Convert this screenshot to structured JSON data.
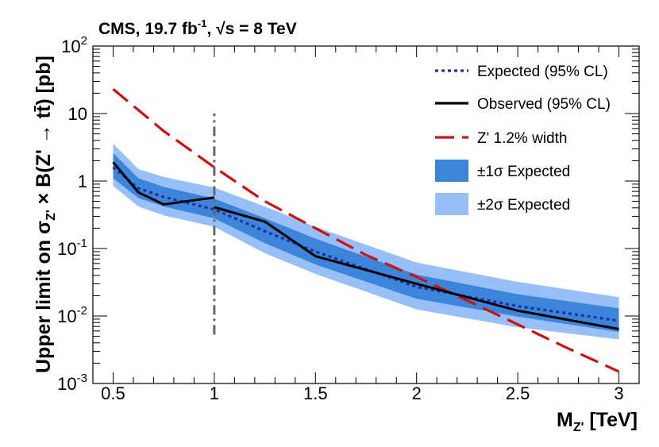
{
  "header": {
    "experiment": "CMS",
    "lumi": "19.7 fb",
    "lumi_exp": "-1",
    "energy": "s = 8 TeV"
  },
  "chart_data": {
    "type": "line",
    "xlabel": "M",
    "xlabel_sub": "Z'",
    "xlabel_unit": "[TeV]",
    "ylabel": "Upper limit on σ",
    "ylabel_sub": "Z'",
    "ylabel_rest": "× B(Z' → tt̄) [pb]",
    "xlim": [
      0.4,
      3.1
    ],
    "ylim": [
      0.001,
      100
    ],
    "yscale": "log",
    "grid": false,
    "legend_position": "top-right",
    "x_ticks": [
      "0.5",
      "1",
      "1.5",
      "2",
      "2.5",
      "3"
    ],
    "x_tick_values": [
      0.5,
      1,
      1.5,
      2,
      2.5,
      3
    ],
    "y_ticks": [
      {
        "base": "10",
        "exp": "-3"
      },
      {
        "base": "10",
        "exp": "-2"
      },
      {
        "base": "10",
        "exp": "-1"
      },
      {
        "base": "1",
        "exp": ""
      },
      {
        "base": "10",
        "exp": ""
      },
      {
        "base": "10",
        "exp": "2"
      }
    ],
    "y_tick_values": [
      0.001,
      0.01,
      0.1,
      1,
      10,
      100
    ],
    "legend": [
      {
        "label": "Expected (95% CL)",
        "style": "dotted",
        "color": "#1f2fa0"
      },
      {
        "label": "Observed (95% CL)",
        "style": "solid",
        "color": "#000000"
      },
      {
        "label": "Z' 1.2% width",
        "style": "dashed",
        "color": "#cc1111"
      },
      {
        "label": "±1σ Expected",
        "style": "box",
        "color": "#3d84db"
      },
      {
        "label": "±2σ Expected",
        "style": "box",
        "color": "#98bff7"
      }
    ],
    "x": [
      0.5,
      0.625,
      0.75,
      1.0,
      1.25,
      1.5,
      2.0,
      2.5,
      3.0
    ],
    "series": [
      {
        "name": "Expected (95% CL)",
        "values": [
          1.6,
          0.78,
          0.58,
          0.38,
          0.18,
          0.09,
          0.027,
          0.014,
          0.0085
        ]
      },
      {
        "name": "Observed (95% CL)",
        "values": [
          1.9,
          0.68,
          0.45,
          0.57,
          0.25,
          0.077,
          0.03,
          0.012,
          0.0064
        ],
        "segments": [
          [
            0.5,
            1.9
          ],
          [
            0.625,
            0.68
          ],
          [
            0.75,
            0.45
          ],
          [
            1.0,
            0.57
          ],
          null,
          [
            1.0,
            0.41
          ],
          [
            1.25,
            0.25
          ],
          [
            1.5,
            0.077
          ],
          [
            2.0,
            0.03
          ],
          [
            2.5,
            0.012
          ],
          [
            3.0,
            0.0064
          ]
        ]
      },
      {
        "name": "Z' 1.2% width",
        "x": [
          0.5,
          0.75,
          1.0,
          1.25,
          1.5,
          1.75,
          2.0,
          2.25,
          2.5,
          2.75,
          3.0
        ],
        "values": [
          23,
          5.5,
          1.6,
          0.5,
          0.2,
          0.08,
          0.038,
          0.017,
          0.0075,
          0.0033,
          0.0015
        ]
      }
    ],
    "band_1sigma": {
      "lower": [
        1.1,
        0.56,
        0.42,
        0.28,
        0.12,
        0.058,
        0.018,
        0.0098,
        0.0058
      ],
      "upper": [
        2.6,
        1.1,
        0.82,
        0.55,
        0.28,
        0.14,
        0.041,
        0.021,
        0.013
      ]
    },
    "band_2sigma": {
      "lower": [
        0.85,
        0.42,
        0.31,
        0.21,
        0.085,
        0.042,
        0.0125,
        0.0068,
        0.0045
      ],
      "upper": [
        3.6,
        1.5,
        1.15,
        0.8,
        0.42,
        0.21,
        0.062,
        0.032,
        0.019
      ]
    },
    "vline": {
      "x": 1.0,
      "y_range": [
        0.0053,
        10
      ],
      "style": "dash-dot",
      "color": "#666666"
    }
  }
}
